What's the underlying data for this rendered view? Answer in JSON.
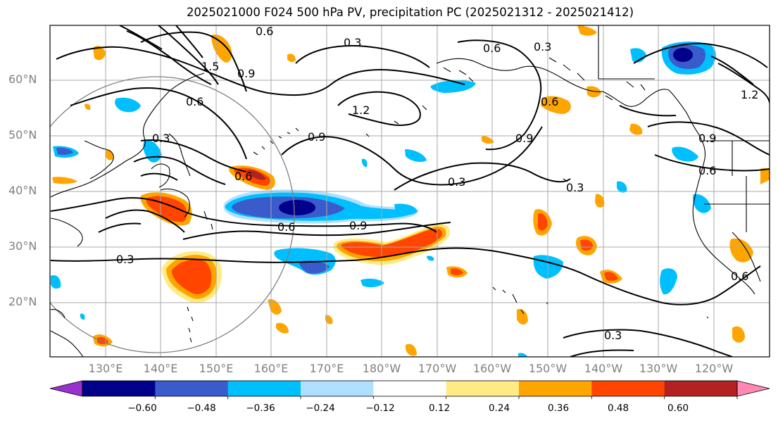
{
  "title": "2025021000 F024 500 hPa PV, precipitation PC (2025021312 - 2025021412)",
  "lat_labels": [
    "60°N",
    "50°N",
    "40°N",
    "30°N",
    "20°N"
  ],
  "lon_labels": [
    "130°E",
    "140°E",
    "150°E",
    "160°E",
    "170°E",
    "180°W",
    "170°W",
    "160°W",
    "150°W",
    "140°W",
    "130°W",
    "120°W"
  ],
  "contour_labels": [
    "0.6",
    "0.3",
    "0.6",
    "0.3",
    "1.5",
    "0.9",
    "0.6",
    "1.2",
    "0.9",
    "0.3",
    "0.6",
    "0.3",
    "0.3",
    "0.9",
    "0.3",
    "0.6",
    "0.9",
    "0.6",
    "0.6",
    "0.9",
    "1.2",
    "0.3",
    "0.6"
  ],
  "colorbar": {
    "ticks": [
      "−0.60",
      "−0.48",
      "−0.36",
      "−0.24",
      "−0.12",
      "0.12",
      "0.24",
      "0.36",
      "0.48",
      "0.60"
    ],
    "colors": [
      "#9932cc",
      "#00008b",
      "#3a5bcc",
      "#00bfff",
      "#b0e0ff",
      "#ffffff",
      "#ffeb85",
      "#ffa500",
      "#ff4500",
      "#b22222",
      "#ff88b4"
    ]
  }
}
